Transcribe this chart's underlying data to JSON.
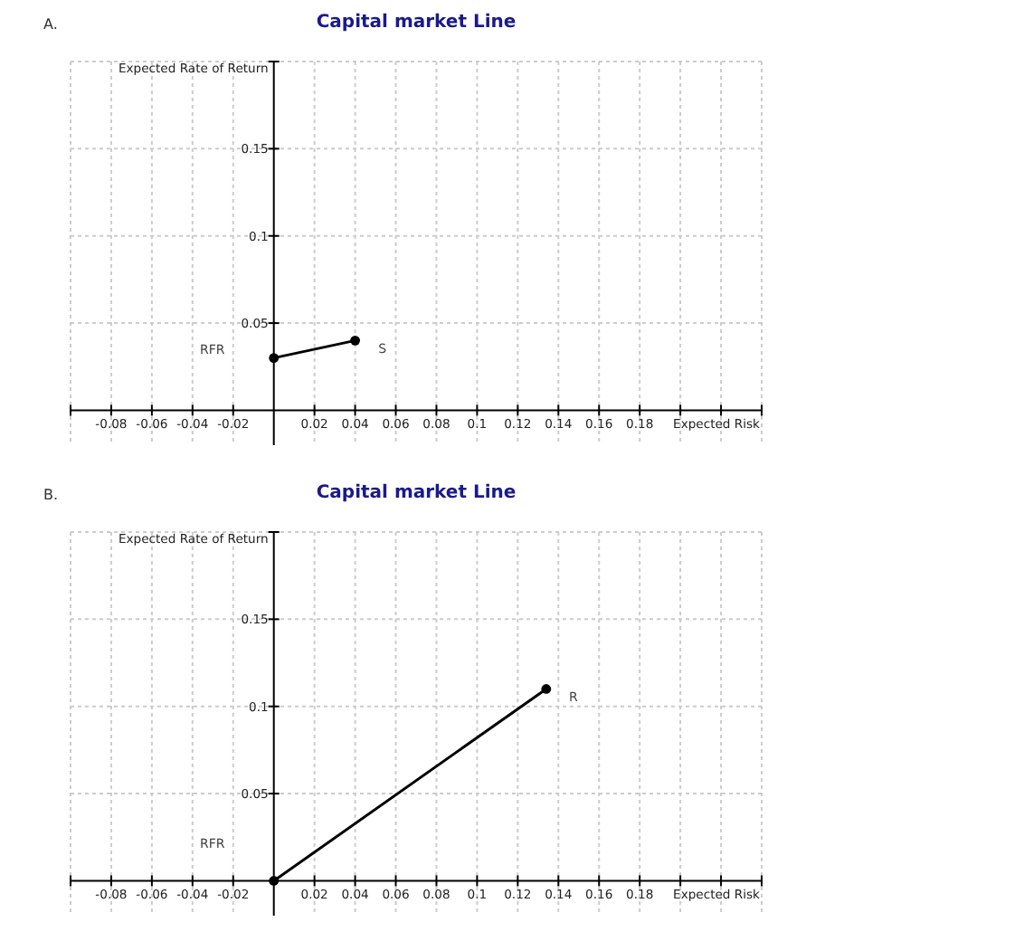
{
  "chart_data": [
    {
      "type": "line",
      "title": "Capital market Line",
      "xlabel": "Expected Risk",
      "ylabel": "Expected Rate of Return",
      "x": [
        0,
        0.04
      ],
      "series": [
        {
          "color": "#000000",
          "values": [
            0.03,
            0.04
          ]
        }
      ],
      "marker": "circle",
      "line_style": "solid",
      "grid": true,
      "xlim": [
        -0.1,
        0.24
      ],
      "ylim": [
        -0.02,
        0.2
      ],
      "xticks": [
        {
          "value": -0.1,
          "label": null
        },
        -0.08,
        -0.06,
        -0.04,
        -0.02,
        0.02,
        0.04,
        0.06,
        0.08,
        0.1,
        0.12,
        0.14,
        0.16,
        0.18,
        {
          "value": 0.2,
          "label": null
        },
        {
          "value": 0.22,
          "label": null
        },
        {
          "value": 0.24,
          "label": null
        }
      ],
      "yticks": [
        0.05,
        0.1,
        0.15,
        {
          "value": 0.2,
          "label": null
        }
      ],
      "annotations": [
        "A.",
        "RFR",
        {
          "text": "S",
          "x": 0.04,
          "y": 0.04
        }
      ]
    },
    {
      "type": "line",
      "title": "Capital market Line",
      "xlabel": "Expected Risk",
      "ylabel": "Expected Rate of Return",
      "x": [
        0,
        0.134
      ],
      "series": [
        {
          "color": "#000000",
          "values": [
            0,
            0.11
          ]
        }
      ],
      "marker": "circle",
      "line_style": "solid",
      "grid": true,
      "xlim": [
        -0.1,
        0.24
      ],
      "ylim": [
        -0.02,
        0.2
      ],
      "xticks": [
        {
          "value": -0.1,
          "label": null
        },
        -0.08,
        -0.06,
        -0.04,
        -0.02,
        0.02,
        0.04,
        0.06,
        0.08,
        0.1,
        0.12,
        0.14,
        0.16,
        0.18,
        {
          "value": 0.2,
          "label": null
        },
        {
          "value": 0.22,
          "label": null
        },
        {
          "value": 0.24,
          "label": null
        }
      ],
      "yticks": [
        0.05,
        0.1,
        0.15,
        {
          "value": 0.2,
          "label": null
        }
      ],
      "annotations": [
        "B.",
        "RFR",
        {
          "text": "R",
          "x": 0.134,
          "y": 0.11
        }
      ]
    }
  ]
}
